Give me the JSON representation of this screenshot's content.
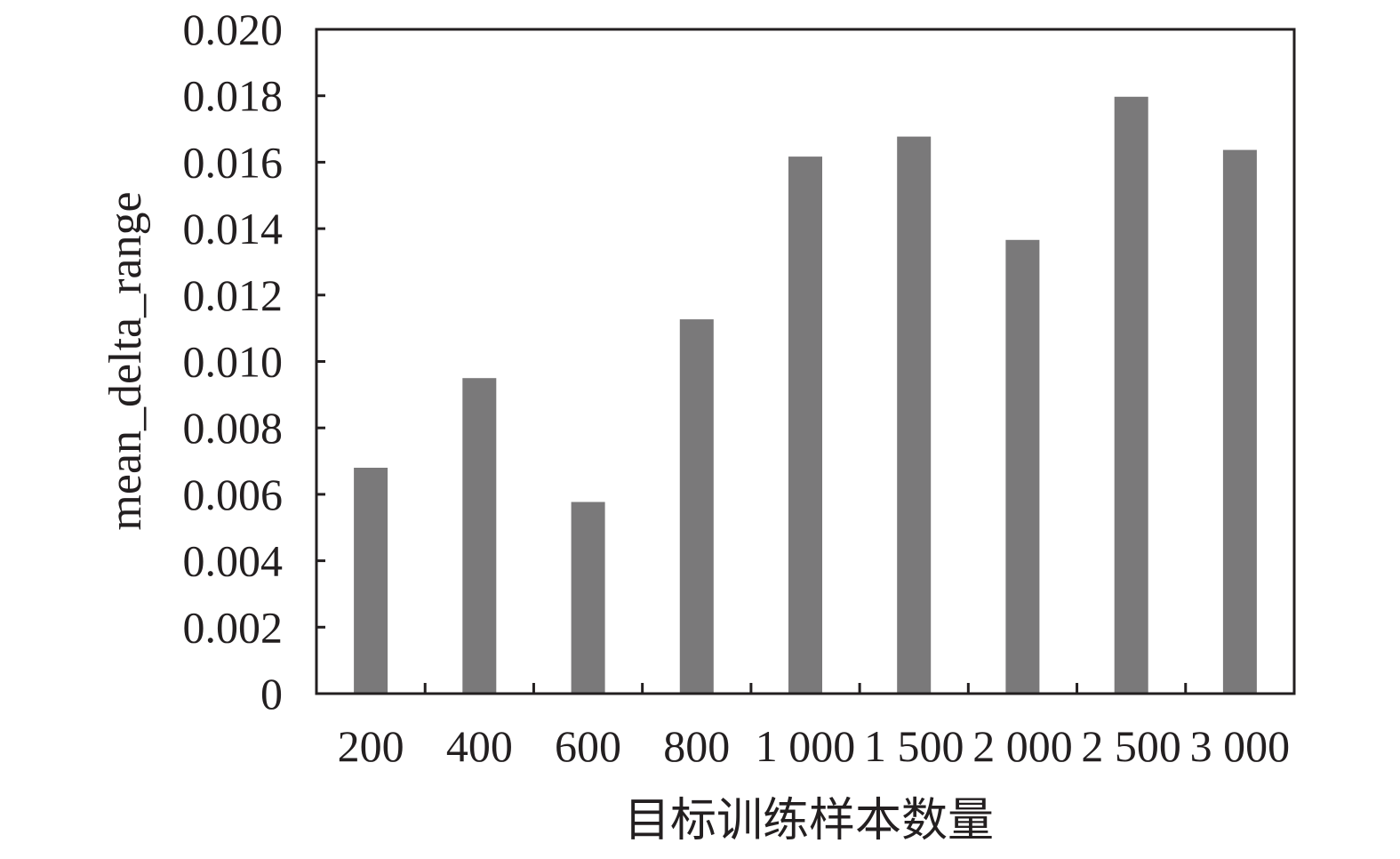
{
  "chart_data": {
    "type": "bar",
    "title": "",
    "xlabel": "目标训练样本数量",
    "ylabel": "mean_delta_range",
    "categories": [
      "200",
      "400",
      "600",
      "800",
      "1 000",
      "1 500",
      "2 000",
      "2 500",
      "3 000"
    ],
    "values": [
      0.0068,
      0.0095,
      0.00577,
      0.01127,
      0.01617,
      0.01677,
      0.01366,
      0.01797,
      0.01637
    ],
    "ylim": [
      0,
      0.02
    ],
    "yticks": [
      "0",
      "0.002",
      "0.004",
      "0.006",
      "0.008",
      "0.010",
      "0.012",
      "0.014",
      "0.016",
      "0.018",
      "0.020"
    ],
    "grid": false,
    "legend": "none",
    "bar_color": "#7a797a",
    "axis_color": "#231f20"
  }
}
